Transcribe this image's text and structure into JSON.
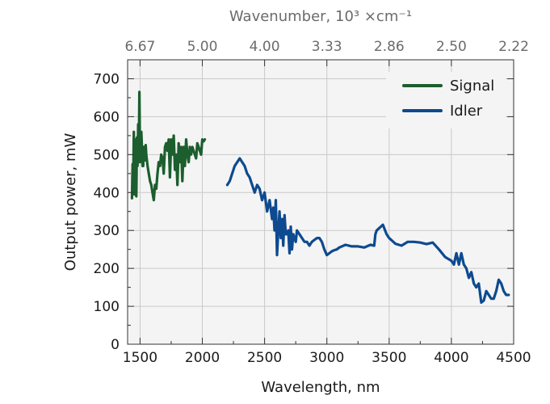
{
  "chart_data": {
    "type": "line",
    "xlabel": "Wavelength, nm",
    "ylabel": "Output power, mW",
    "top_xlabel": "Wavenumber, 10³ ×cm⁻¹",
    "xlim": [
      1400,
      4500
    ],
    "ylim": [
      0,
      750
    ],
    "x_ticks": [
      1500,
      2000,
      2500,
      3000,
      3500,
      4000,
      4500
    ],
    "y_ticks": [
      0,
      100,
      200,
      300,
      400,
      500,
      600,
      700
    ],
    "top_ticks": [
      {
        "label": "6.67",
        "wavelength": 1500
      },
      {
        "label": "5.00",
        "wavelength": 2000
      },
      {
        "label": "4.00",
        "wavelength": 2500
      },
      {
        "label": "3.33",
        "wavelength": 3000
      },
      {
        "label": "2.86",
        "wavelength": 3500
      },
      {
        "label": "2.50",
        "wavelength": 4000
      },
      {
        "label": "2.22",
        "wavelength": 4500
      }
    ],
    "grid": true,
    "legend_position": "top-right",
    "series": [
      {
        "name": "Signal",
        "color": "#1c5e2e",
        "x": [
          1435,
          1440,
          1445,
          1450,
          1455,
          1460,
          1465,
          1470,
          1475,
          1480,
          1485,
          1490,
          1495,
          1500,
          1505,
          1510,
          1515,
          1520,
          1525,
          1530,
          1535,
          1540,
          1545,
          1550,
          1560,
          1570,
          1580,
          1590,
          1600,
          1610,
          1620,
          1630,
          1640,
          1650,
          1660,
          1670,
          1680,
          1690,
          1700,
          1710,
          1720,
          1730,
          1740,
          1750,
          1760,
          1770,
          1780,
          1790,
          1800,
          1810,
          1820,
          1830,
          1840,
          1850,
          1860,
          1870,
          1880,
          1890,
          1900,
          1910,
          1920,
          1930,
          1940,
          1950,
          1960,
          1970,
          1980,
          1990,
          2000,
          2010,
          2020
        ],
        "y": [
          385,
          475,
          410,
          560,
          395,
          540,
          455,
          390,
          545,
          470,
          580,
          500,
          665,
          480,
          505,
          560,
          520,
          470,
          470,
          520,
          500,
          485,
          525,
          500,
          470,
          450,
          430,
          420,
          400,
          380,
          420,
          410,
          450,
          480,
          470,
          500,
          490,
          450,
          520,
          530,
          510,
          540,
          440,
          540,
          500,
          550,
          460,
          500,
          420,
          530,
          480,
          520,
          430,
          520,
          470,
          540,
          500,
          480,
          520,
          500,
          520,
          510,
          500,
          490,
          530,
          520,
          510,
          500,
          540,
          535,
          540
        ]
      },
      {
        "name": "Idler",
        "color": "#0d4a8f",
        "x": [
          2200,
          2220,
          2240,
          2260,
          2280,
          2300,
          2320,
          2340,
          2360,
          2380,
          2400,
          2420,
          2440,
          2460,
          2480,
          2500,
          2520,
          2540,
          2560,
          2570,
          2580,
          2590,
          2600,
          2610,
          2620,
          2630,
          2640,
          2650,
          2660,
          2670,
          2680,
          2690,
          2700,
          2710,
          2720,
          2730,
          2740,
          2750,
          2760,
          2780,
          2800,
          2820,
          2840,
          2860,
          2880,
          2900,
          2920,
          2940,
          2960,
          2980,
          3000,
          3020,
          3040,
          3060,
          3080,
          3100,
          3150,
          3200,
          3250,
          3300,
          3350,
          3380,
          3390,
          3400,
          3450,
          3480,
          3500,
          3550,
          3600,
          3650,
          3700,
          3750,
          3800,
          3850,
          3900,
          3950,
          4000,
          4020,
          4040,
          4060,
          4080,
          4100,
          4120,
          4140,
          4160,
          4180,
          4200,
          4220,
          4240,
          4260,
          4280,
          4300,
          4320,
          4340,
          4360,
          4380,
          4400,
          4420,
          4440,
          4460
        ],
        "y": [
          420,
          430,
          450,
          470,
          480,
          490,
          480,
          470,
          450,
          440,
          420,
          400,
          420,
          410,
          380,
          400,
          350,
          380,
          330,
          360,
          300,
          380,
          235,
          300,
          350,
          280,
          330,
          260,
          340,
          290,
          290,
          300,
          240,
          310,
          250,
          290,
          280,
          270,
          300,
          290,
          280,
          270,
          270,
          260,
          270,
          275,
          280,
          280,
          270,
          250,
          235,
          240,
          245,
          248,
          250,
          255,
          262,
          258,
          258,
          255,
          262,
          260,
          290,
          300,
          315,
          290,
          280,
          265,
          260,
          270,
          270,
          268,
          264,
          268,
          250,
          230,
          220,
          210,
          240,
          210,
          240,
          210,
          200,
          175,
          190,
          160,
          150,
          160,
          110,
          115,
          140,
          130,
          120,
          120,
          140,
          170,
          160,
          140,
          130,
          130
        ]
      }
    ]
  }
}
